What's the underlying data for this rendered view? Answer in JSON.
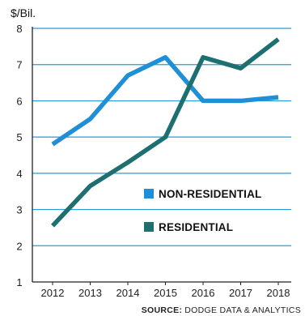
{
  "chart_data": {
    "type": "line",
    "ylabel": "$/Bil.",
    "xlabel": "",
    "title": "",
    "x": [
      "2012",
      "2013",
      "2014",
      "2015",
      "2016",
      "2017",
      "2018"
    ],
    "y_ticks": [
      "1",
      "2",
      "3",
      "4",
      "5",
      "6",
      "7",
      "8"
    ],
    "ylim": [
      1,
      8
    ],
    "grid": true,
    "series": [
      {
        "name": "NON-RESIDENTIAL",
        "color": "#1f90d8",
        "values": [
          4.8,
          5.5,
          6.7,
          7.2,
          6.0,
          6.0,
          6.1
        ]
      },
      {
        "name": "RESIDENTIAL",
        "color": "#1d6f70",
        "values": [
          2.55,
          3.65,
          4.3,
          5.0,
          7.2,
          6.9,
          7.7
        ]
      }
    ],
    "legend_position": "center-right",
    "source_label": "SOURCE:",
    "source_text": "DODGE DATA & ANALYTICS"
  },
  "colors": {
    "grid": "#2a9bd6",
    "axis": "#222222",
    "background": "#ffffff"
  }
}
